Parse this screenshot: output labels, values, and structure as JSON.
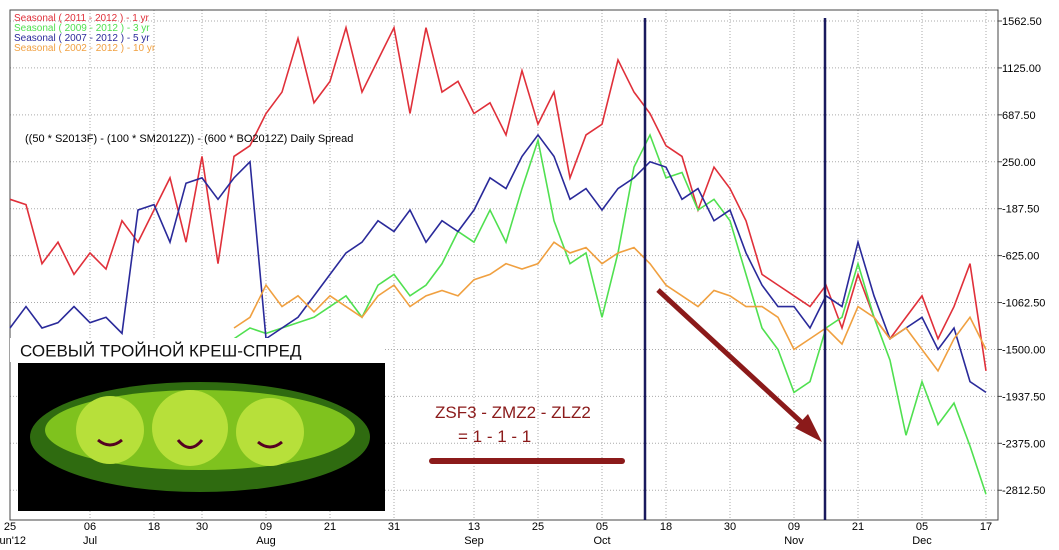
{
  "chart_data": {
    "type": "line",
    "annotation": "((50 * S2013F) - (100 * SM2012Z)) - (600 * BO2012Z) Daily Spread",
    "overlay_title": "СОЕВЫЙ  ТРОЙНОЙ КРЕШ-СПРЕД",
    "formula": "ZSF3 - ZMZ2 - ZLZ2",
    "ratio": "= 1 - 1 - 1",
    "categories": [
      "25\nJun'12",
      null,
      null,
      null,
      null,
      "06\nJul",
      null,
      null,
      null,
      "18",
      null,
      null,
      "30",
      null,
      null,
      null,
      "09\nAug",
      null,
      null,
      null,
      "21",
      null,
      null,
      null,
      "31",
      null,
      null,
      null,
      null,
      "13\nSep",
      null,
      null,
      null,
      "25",
      null,
      null,
      null,
      "05\nOct",
      null,
      null,
      null,
      "18",
      null,
      null,
      null,
      "30",
      null,
      null,
      null,
      "09\nNov",
      null,
      null,
      null,
      "21",
      null,
      null,
      null,
      "05\nDec",
      null,
      null,
      null,
      "17"
    ],
    "series": [
      {
        "name": "Seasonal ( 2011 - 2012 ) - 1 yr",
        "color": "#e0303a",
        "values": [
          -100,
          -150,
          -700,
          -500,
          -800,
          -600,
          -750,
          -300,
          -500,
          -200,
          100,
          -500,
          300,
          -700,
          300,
          400,
          700,
          900,
          1400,
          800,
          1000,
          1500,
          900,
          1200,
          1500,
          700,
          1500,
          900,
          1000,
          700,
          800,
          500,
          1100,
          600,
          900,
          100,
          500,
          600,
          1200,
          900,
          700,
          400,
          300,
          -200,
          200,
          0,
          -300,
          -800,
          -900,
          -1000,
          -1100,
          -900,
          -1300,
          -800,
          -1200,
          -1400,
          -1200,
          -1000,
          -1400,
          -1100,
          -700,
          -1700
        ]
      },
      {
        "name": "Seasonal ( 2009 - 2012 ) - 3 yr",
        "color": "#50e050",
        "values": [
          null,
          null,
          null,
          null,
          null,
          null,
          null,
          null,
          null,
          null,
          null,
          null,
          null,
          null,
          -1400,
          -1300,
          -1350,
          -1300,
          -1250,
          -1200,
          -1100,
          -1000,
          -1200,
          -900,
          -800,
          -1000,
          -900,
          -700,
          -400,
          -500,
          -200,
          -500,
          0,
          450,
          -300,
          -700,
          -600,
          -1200,
          -600,
          200,
          500,
          100,
          150,
          -200,
          -100,
          -300,
          -800,
          -1300,
          -1500,
          -1900,
          -1800,
          -1300,
          -1200,
          -700,
          -1200,
          -1600,
          -2300,
          -1800,
          -2200,
          -2000,
          -2400,
          -2850
        ]
      },
      {
        "name": "Seasonal ( 2007 - 2012 ) - 5 yr",
        "color": "#2a2a9a",
        "values": [
          -1300,
          -1100,
          -1300,
          -1250,
          -1100,
          -1250,
          -1200,
          -1350,
          -200,
          -150,
          -500,
          50,
          100,
          -100,
          100,
          250,
          -1400,
          -1300,
          -1200,
          -1000,
          -800,
          -600,
          -500,
          -300,
          -400,
          -200,
          -500,
          -300,
          -400,
          -200,
          100,
          0,
          300,
          500,
          300,
          -100,
          0,
          -200,
          0,
          100,
          250,
          200,
          -100,
          0,
          -300,
          -200,
          -600,
          -900,
          -1100,
          -1100,
          -1300,
          -1000,
          -1100,
          -500,
          -1000,
          -1400,
          -1300,
          -1200,
          -1500,
          -1300,
          -1800,
          -1900
        ]
      },
      {
        "name": "Seasonal ( 2002 - 2012 ) - 10 yr",
        "color": "#f0a040",
        "values": [
          null,
          null,
          null,
          null,
          null,
          null,
          null,
          null,
          null,
          null,
          null,
          null,
          null,
          null,
          -1300,
          -1200,
          -900,
          -1100,
          -1000,
          -1150,
          -1000,
          -1100,
          -1200,
          -1000,
          -900,
          -1100,
          -1000,
          -950,
          -1000,
          -850,
          -800,
          -700,
          -750,
          -700,
          -500,
          -600,
          -550,
          -700,
          -600,
          -550,
          -700,
          -900,
          -1000,
          -1100,
          -950,
          -1000,
          -1100,
          -1100,
          -1200,
          -1500,
          -1400,
          -1300,
          -1450,
          -1100,
          -1200,
          -1400,
          -1300,
          -1500,
          -1700,
          -1400,
          -1200,
          -1500
        ]
      }
    ],
    "ylim": [
      -3090,
      1665
    ],
    "yticks": [
      {
        "value": 1562.5,
        "label": "1562.50"
      },
      {
        "value": 1125,
        "label": "1125.00"
      },
      {
        "value": 687.5,
        "label": "687.50"
      },
      {
        "value": 250,
        "label": "250.00"
      },
      {
        "value": -187.5,
        "label": "-187.50"
      },
      {
        "value": -625,
        "label": "-625.00"
      },
      {
        "value": -1062.5,
        "label": "-1062.50"
      },
      {
        "value": -1500,
        "label": "-1500.00"
      },
      {
        "value": -1937.5,
        "label": "-1937.50"
      },
      {
        "value": -2375,
        "label": "-2375.00"
      },
      {
        "value": -2812.5,
        "label": "-2812.50"
      }
    ],
    "grid": true,
    "legend": "top-left"
  }
}
